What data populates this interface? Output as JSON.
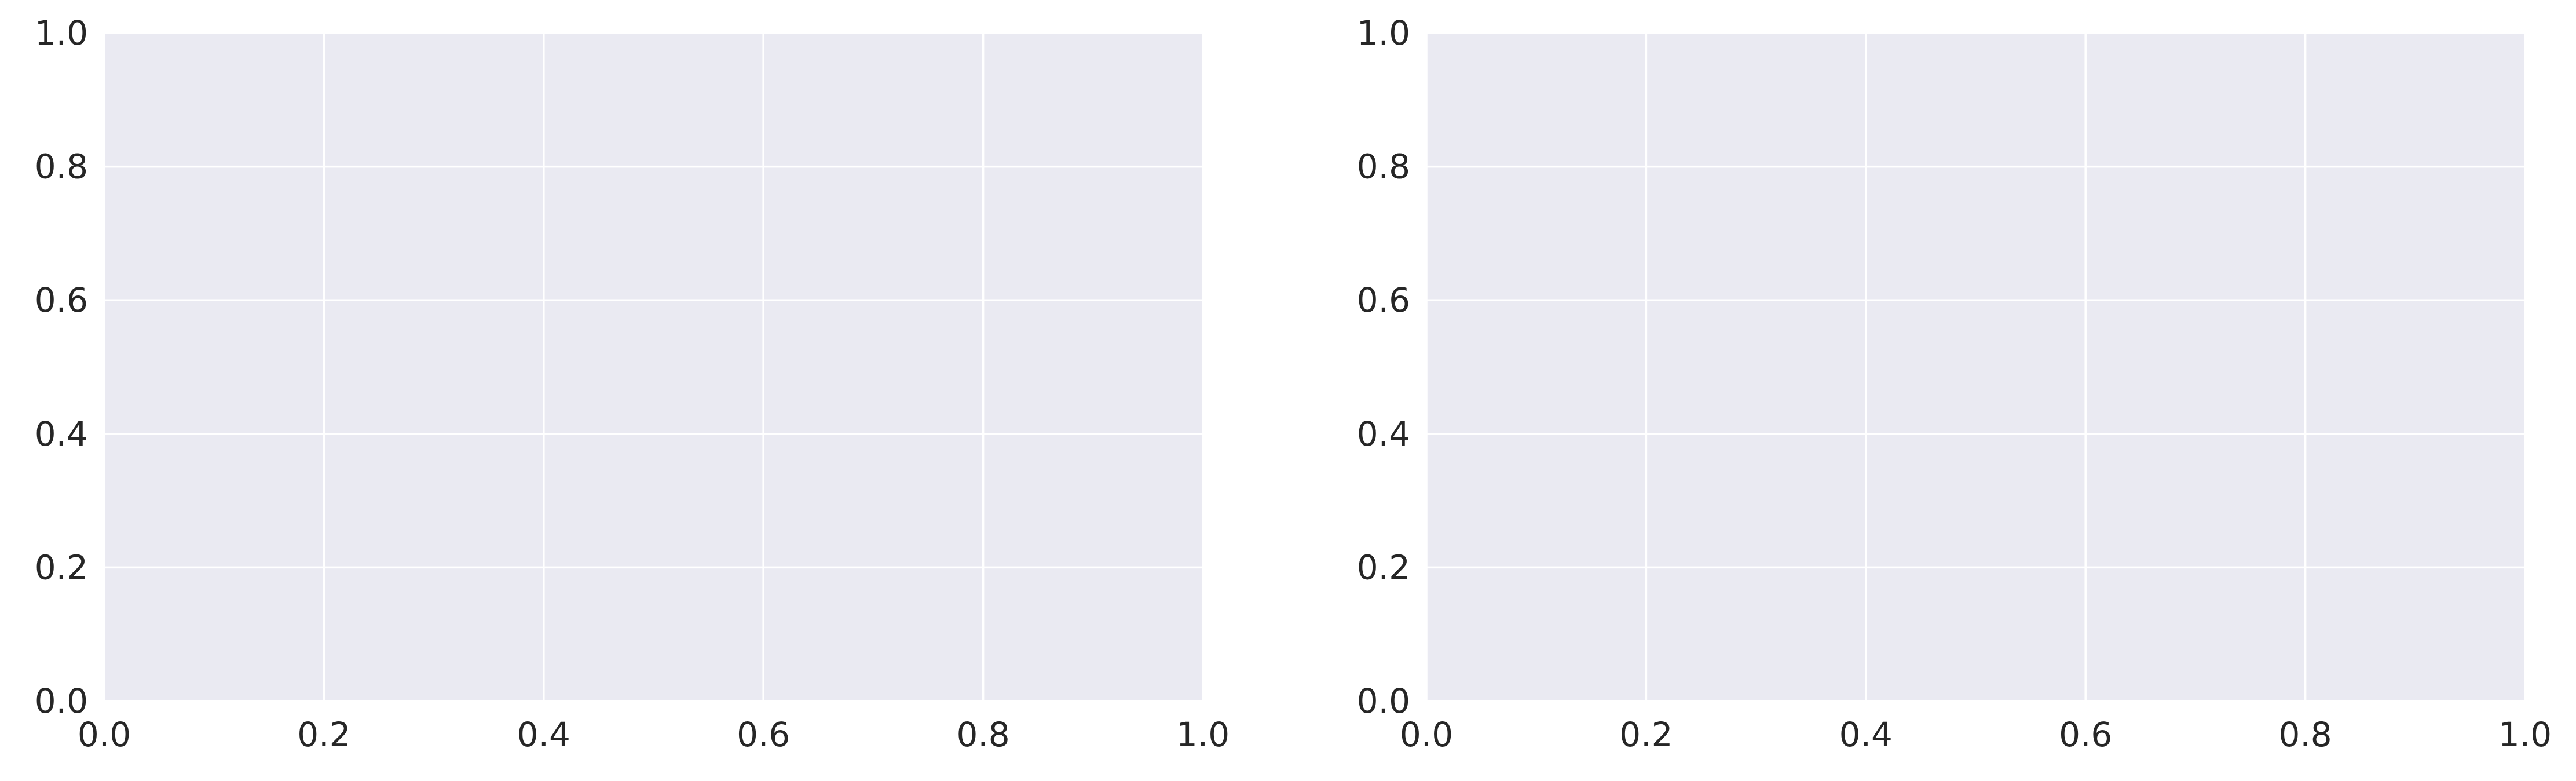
{
  "figure": {
    "background": "#ffffff",
    "axes_facecolor": "#eaeaf2",
    "grid_color": "#ffffff",
    "tick_label_color": "#262626"
  },
  "chart_data": [
    {
      "type": "scatter",
      "series": [],
      "title": "",
      "xlabel": "",
      "ylabel": "",
      "xlim": [
        0.0,
        1.0
      ],
      "ylim": [
        0.0,
        1.0
      ],
      "xticks": [
        0.0,
        0.2,
        0.4,
        0.6,
        0.8,
        1.0
      ],
      "yticks": [
        0.0,
        0.2,
        0.4,
        0.6,
        0.8,
        1.0
      ],
      "xtick_labels": [
        "0.0",
        "0.2",
        "0.4",
        "0.6",
        "0.8",
        "1.0"
      ],
      "ytick_labels": [
        "0.0",
        "0.2",
        "0.4",
        "0.6",
        "0.8",
        "1.0"
      ],
      "grid": true
    },
    {
      "type": "scatter",
      "series": [],
      "title": "",
      "xlabel": "",
      "ylabel": "",
      "xlim": [
        0.0,
        1.0
      ],
      "ylim": [
        0.0,
        1.0
      ],
      "xticks": [
        0.0,
        0.2,
        0.4,
        0.6,
        0.8,
        1.0
      ],
      "yticks": [
        0.0,
        0.2,
        0.4,
        0.6,
        0.8,
        1.0
      ],
      "xtick_labels": [
        "0.0",
        "0.2",
        "0.4",
        "0.6",
        "0.8",
        "1.0"
      ],
      "ytick_labels": [
        "0.0",
        "0.2",
        "0.4",
        "0.6",
        "0.8",
        "1.0"
      ],
      "grid": true
    }
  ]
}
